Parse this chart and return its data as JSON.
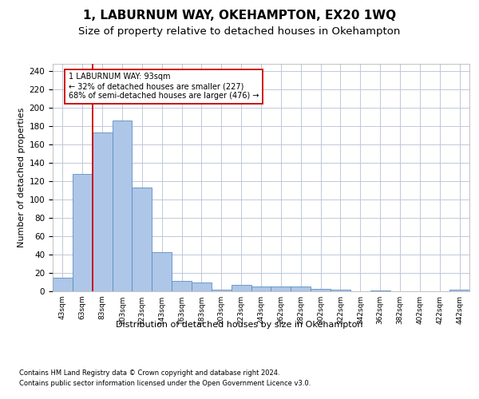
{
  "title": "1, LABURNUM WAY, OKEHAMPTON, EX20 1WQ",
  "subtitle": "Size of property relative to detached houses in Okehampton",
  "xlabel": "Distribution of detached houses by size in Okehampton",
  "ylabel": "Number of detached properties",
  "footnote1": "Contains HM Land Registry data © Crown copyright and database right 2024.",
  "footnote2": "Contains public sector information licensed under the Open Government Licence v3.0.",
  "bar_labels": [
    "43sqm",
    "63sqm",
    "83sqm",
    "103sqm",
    "123sqm",
    "143sqm",
    "163sqm",
    "183sqm",
    "203sqm",
    "223sqm",
    "243sqm",
    "262sqm",
    "282sqm",
    "302sqm",
    "322sqm",
    "342sqm",
    "362sqm",
    "382sqm",
    "402sqm",
    "422sqm",
    "442sqm"
  ],
  "bar_values": [
    15,
    128,
    173,
    186,
    113,
    43,
    11,
    10,
    2,
    7,
    5,
    5,
    5,
    3,
    2,
    0,
    1,
    0,
    0,
    0,
    2
  ],
  "bar_color": "#aec6e8",
  "bar_edge_color": "#5a8fc2",
  "grid_color": "#c0c8d8",
  "annotation_text": "1 LABURNUM WAY: 93sqm\n← 32% of detached houses are smaller (227)\n68% of semi-detached houses are larger (476) →",
  "annotation_box_color": "#ffffff",
  "annotation_box_edge_color": "#cc0000",
  "vline_color": "#cc0000",
  "vline_x": 1.5,
  "ylim": [
    0,
    248
  ],
  "yticks": [
    0,
    20,
    40,
    60,
    80,
    100,
    120,
    140,
    160,
    180,
    200,
    220,
    240
  ],
  "bg_color": "#ffffff",
  "title_fontsize": 11,
  "subtitle_fontsize": 9.5
}
